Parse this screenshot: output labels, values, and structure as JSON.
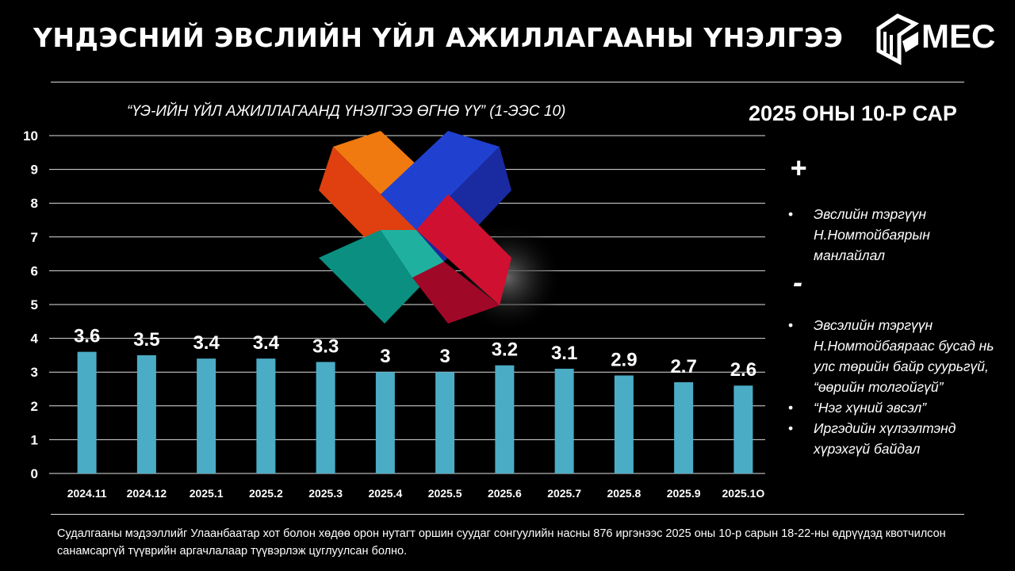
{
  "header": {
    "title": "ҮНДЭСНИЙ ЭВСЛИЙН ҮЙЛ АЖИЛЛАГААНЫ ҮНЭЛГЭЭ",
    "logo_text": "MEC"
  },
  "period": "2025 ОНЫ 10-Р САР",
  "chart_data": {
    "type": "bar",
    "title": "“ҮЭ-ИЙН ҮЙЛ АЖИЛЛАГААНД ҮНЭЛГЭЭ ӨГНӨ ҮҮ” (1-ЭЭС 10)",
    "categories": [
      "2024.11",
      "2024.12",
      "2025.1",
      "2025.2",
      "2025.3",
      "2025.4",
      "2025.5",
      "2025.6",
      "2025.7",
      "2025.8",
      "2025.9",
      "2025.1O"
    ],
    "values": [
      3.6,
      3.5,
      3.4,
      3.4,
      3.3,
      3,
      3,
      3.2,
      3.1,
      2.9,
      2.7,
      2.6
    ],
    "ylim": [
      0,
      10
    ],
    "yticks": [
      "0",
      "1",
      "2",
      "3",
      "4",
      "5",
      "6",
      "7",
      "8",
      "9",
      "10"
    ],
    "xlabel": "",
    "ylabel": "",
    "grid": true,
    "bar_color": "#4bacc6"
  },
  "side": {
    "plus_sign": "+",
    "plus_items": [
      "Эвслийн тэргүүн Н.Номтойбаярын манлайлал"
    ],
    "minus_sign": "-",
    "minus_items": [
      "Эвсэлийн тэргүүн Н.Номтойбаяраас бусад нь улс төрийн байр суурьгүй, “өөрийн толгойгүй”",
      "“Нэг хүний эвсэл”",
      "Иргэдийн хүлээлтэнд хүрэхгүй байдал"
    ]
  },
  "footer": "Судалгааны мэдээллийг Улаанбаатар хот болон хөдөө орон нутагт оршин суудаг сонгуулийн насны 876 иргэнээс 2025 оны 10-р сарын 18-22-ны өдрүүдэд квотчилсон санамсаргүй түүврийн аргачлалаар түүвэрлэж цуглуулсан болно."
}
